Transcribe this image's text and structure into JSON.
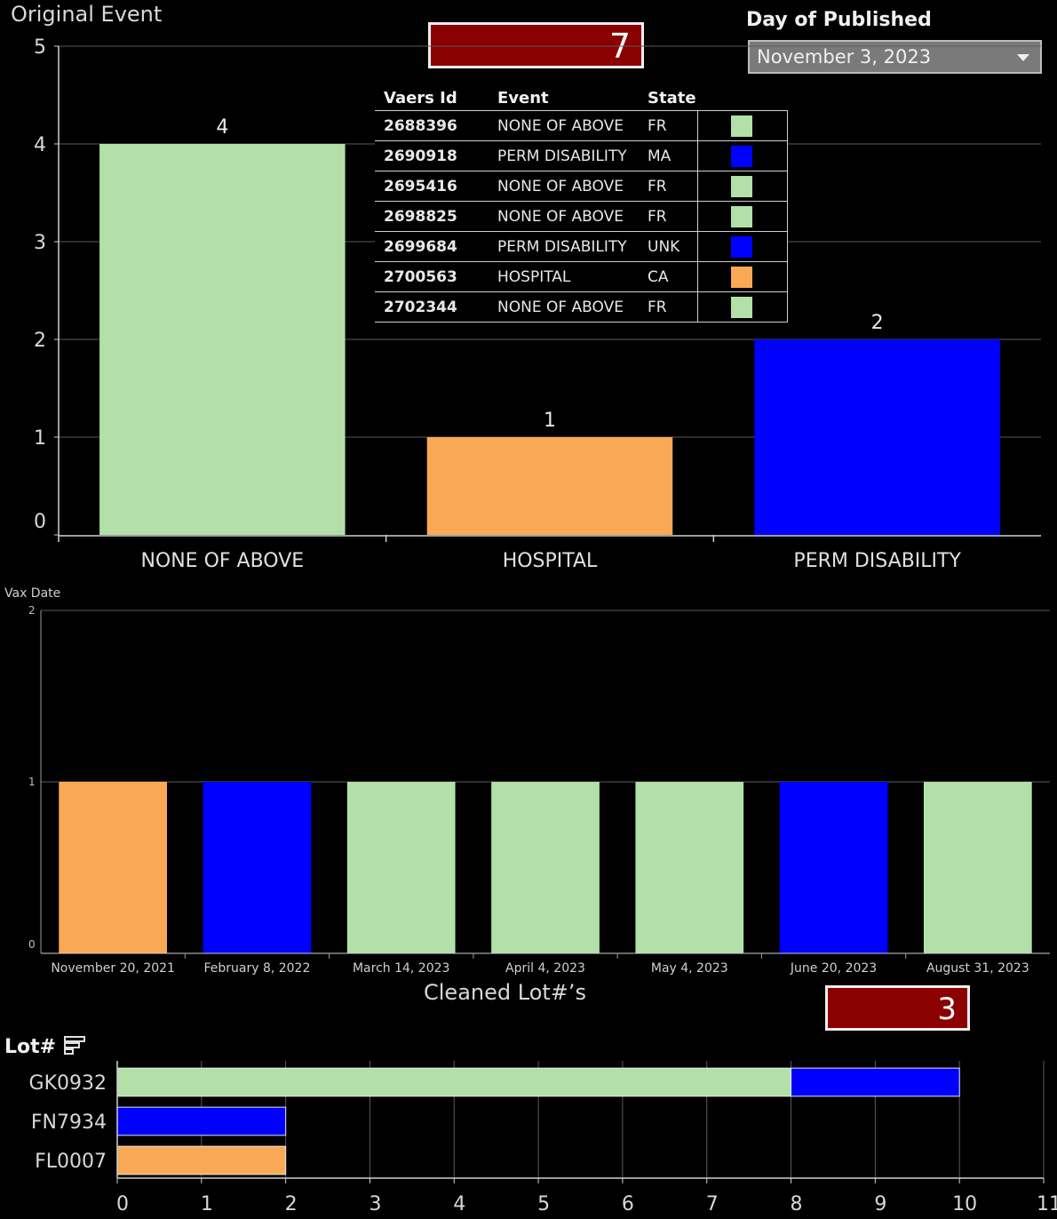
{
  "header": {
    "title": "Original Event",
    "total_kpi": "7",
    "filter_label": "Day of Published",
    "filter_value": "November 3, 2023"
  },
  "event_table": {
    "columns": [
      "Vaers Id",
      "Event",
      "State"
    ],
    "rows": [
      {
        "id": "2688396",
        "event": "NONE OF ABOVE",
        "state": "FR",
        "color": "#b3e0a8"
      },
      {
        "id": "2690918",
        "event": "PERM DISABILITY",
        "state": "MA",
        "color": "#0000ff"
      },
      {
        "id": "2695416",
        "event": "NONE OF ABOVE",
        "state": "FR",
        "color": "#b3e0a8"
      },
      {
        "id": "2698825",
        "event": "NONE OF ABOVE",
        "state": "FR",
        "color": "#b3e0a8"
      },
      {
        "id": "2699684",
        "event": "PERM DISABILITY",
        "state": "UNK",
        "color": "#0000ff"
      },
      {
        "id": "2700563",
        "event": "HOSPITAL",
        "state": "CA",
        "color": "#f9a955"
      },
      {
        "id": "2702344",
        "event": "NONE OF ABOVE",
        "state": "FR",
        "color": "#b3e0a8"
      }
    ]
  },
  "colors": {
    "none_of_above": "#b3e0a8",
    "hospital": "#f9a955",
    "perm_disability": "#0000ff",
    "kpi_bg": "#8b0000"
  },
  "lot_section": {
    "title": "Cleaned Lot#’s",
    "kpi": "3",
    "row_header": "Lot#",
    "sort_icon": "sort-icon"
  },
  "chart_data": [
    {
      "type": "bar",
      "title": "Original Event",
      "categories": [
        "NONE OF ABOVE",
        "HOSPITAL",
        "PERM DISABILITY"
      ],
      "values": [
        4,
        1,
        2
      ],
      "data_labels": [
        "4",
        "1",
        "2"
      ],
      "colors": [
        "#b3e0a8",
        "#f9a955",
        "#0000ff"
      ],
      "ylim": [
        0,
        5
      ],
      "yticks": [
        "0",
        "1",
        "2",
        "3",
        "4",
        "5"
      ],
      "grid": true
    },
    {
      "type": "bar",
      "ylabel": "Vax Date",
      "categories": [
        "November 20, 2021",
        "February 8, 2022",
        "March 14, 2023",
        "April 4, 2023",
        "May 4, 2023",
        "June 20, 2023",
        "August 31, 2023"
      ],
      "values": [
        1,
        1,
        1,
        1,
        1,
        1,
        1
      ],
      "colors": [
        "#f9a955",
        "#0000ff",
        "#b3e0a8",
        "#b3e0a8",
        "#b3e0a8",
        "#0000ff",
        "#b3e0a8"
      ],
      "ylim": [
        0,
        2
      ],
      "yticks": [
        "0",
        "1",
        "2"
      ],
      "grid": true
    },
    {
      "type": "bar",
      "orientation": "horizontal",
      "stacked": true,
      "title": "Cleaned Lot#’s",
      "categories": [
        "GK0932",
        "FN7934",
        "FL0007"
      ],
      "series": [
        {
          "color": "#b3e0a8",
          "values": [
            8,
            0,
            0
          ]
        },
        {
          "color": "#0000ff",
          "values": [
            2,
            2,
            0
          ]
        },
        {
          "color": "#f9a955",
          "values": [
            0,
            0,
            2
          ]
        }
      ],
      "xlim": [
        0,
        11
      ],
      "xticks": [
        "0",
        "1",
        "2",
        "3",
        "4",
        "5",
        "6",
        "7",
        "8",
        "9",
        "10",
        "11"
      ],
      "grid": true
    }
  ]
}
